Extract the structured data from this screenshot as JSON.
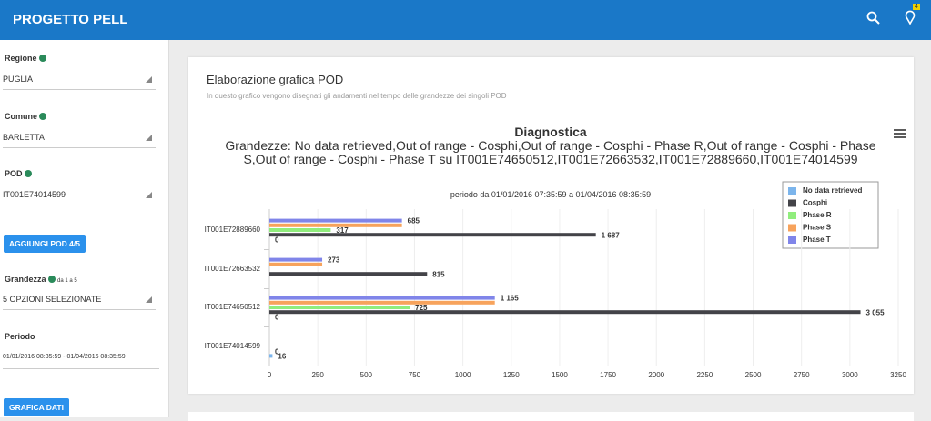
{
  "header": {
    "title": "PROGETTO PELL",
    "badge": "4"
  },
  "sidebar": {
    "regione": {
      "label": "Regione",
      "value": "PUGLIA"
    },
    "comune": {
      "label": "Comune",
      "value": "BARLETTA"
    },
    "pod": {
      "label": "POD",
      "value": "IT001E74014599"
    },
    "add_button": "AGGIUNGI POD 4/5",
    "grandezza": {
      "label": "Grandezza",
      "hint": "da 1 a 5",
      "value": "5 OPZIONI SELEZIONATE"
    },
    "periodo": {
      "label": "Periodo",
      "value": "01/01/2016 08:35:59 - 01/04/2016 08:35:59"
    },
    "chart_button": "GRAFICA DATI"
  },
  "panel": {
    "title": "Elaborazione grafica POD",
    "description": "In questo grafico vengono disegnati gli andamenti nel tempo delle grandezze dei singoli POD"
  },
  "chart_data": {
    "type": "hbar",
    "title": "Diagnostica",
    "subtitle": "Grandezze: No data retrieved,Out of range - Cosphi,Out of range - Cosphi - Phase R,Out of range - Cosphi - Phase S,Out of range - Cosphi - Phase T su IT001E74650512,IT001E72663532,IT001E72889660,IT001E74014599",
    "period": "periodo da 01/01/2016 07:35:59 a 01/04/2016 08:35:59",
    "categories": [
      "IT001E72889660",
      "IT001E72663532",
      "IT001E74650512",
      "IT001E74014599"
    ],
    "series": [
      {
        "name": "No data retrieved",
        "color": "#7cb5ec",
        "values": [
          0,
          null,
          0,
          16
        ],
        "value_labels": [
          "0",
          null,
          "0",
          "16"
        ]
      },
      {
        "name": "Cosphi",
        "color": "#434348",
        "values": [
          1687,
          815,
          3055,
          0
        ],
        "value_labels": [
          "1 687",
          "815",
          "3 055",
          "0"
        ]
      },
      {
        "name": "Phase R",
        "color": "#90ed7d",
        "values": [
          317,
          null,
          725,
          null
        ],
        "value_labels": [
          "317",
          null,
          "725",
          null
        ]
      },
      {
        "name": "Phase S",
        "color": "#f7a35c",
        "values": [
          685,
          273,
          1165,
          null
        ],
        "value_labels": [
          null,
          null,
          null,
          null
        ]
      },
      {
        "name": "Phase T",
        "color": "#8085e9",
        "values": [
          685,
          273,
          1165,
          null
        ],
        "value_labels": [
          "685",
          "273",
          "1 165",
          null
        ]
      }
    ],
    "xlim": [
      0,
      3250
    ],
    "xticks": [
      0,
      250,
      500,
      750,
      1000,
      1250,
      1500,
      1750,
      2000,
      2250,
      2500,
      2750,
      3000,
      3250
    ],
    "grid": true,
    "legend": "top-right"
  }
}
